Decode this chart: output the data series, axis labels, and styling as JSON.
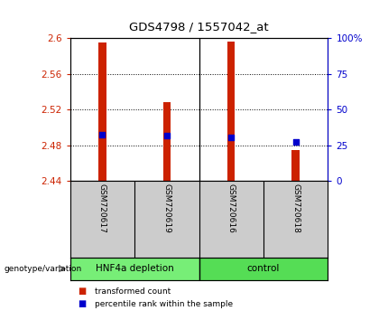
{
  "title": "GDS4798 / 1557042_at",
  "samples": [
    "GSM720617",
    "GSM720619",
    "GSM720616",
    "GSM720618"
  ],
  "bar_bottom": 2.44,
  "bar_tops": [
    2.595,
    2.528,
    2.596,
    2.475
  ],
  "percentile_values": [
    2.492,
    2.491,
    2.489,
    2.484
  ],
  "ylim": [
    2.44,
    2.6
  ],
  "yticks_left": [
    2.44,
    2.48,
    2.52,
    2.56,
    2.6
  ],
  "yticks_right": [
    0,
    25,
    50,
    75,
    100
  ],
  "ytick_labels_left": [
    "2.44",
    "2.48",
    "2.52",
    "2.56",
    "2.6"
  ],
  "ytick_labels_right": [
    "0",
    "25",
    "50",
    "75",
    "100%"
  ],
  "bar_color": "#CC2200",
  "dot_color": "#0000CC",
  "left_tick_color": "#CC2200",
  "right_tick_color": "#0000CC",
  "group1_label": "HNF4a depletion",
  "group2_label": "control",
  "legend_bar_label": "transformed count",
  "legend_dot_label": "percentile rank within the sample",
  "genotype_label": "genotype/variation",
  "sample_bg_color": "#CCCCCC",
  "group1_color": "#77EE77",
  "group2_color": "#55DD55",
  "bar_width": 0.12
}
